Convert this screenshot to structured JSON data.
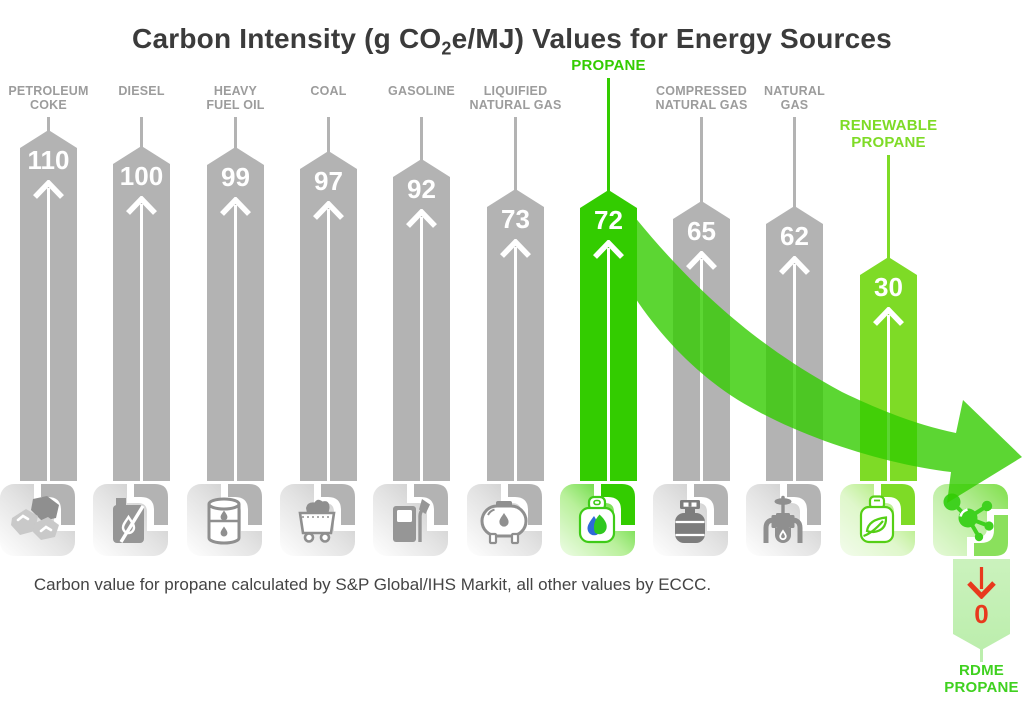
{
  "title": {
    "prefix": "Carbon Intensity (g CO",
    "subscript": "2",
    "suffix": "e/MJ) Values for Energy Sources"
  },
  "note": "Carbon value for propane calculated by S&P Global/IHS Markit, all other values by ECCC.",
  "colors": {
    "bar_gray": "#b3b3b3",
    "label_gray": "#9c9c9c",
    "propane_green": "#33cc00",
    "renewable_green": "#7edb26",
    "rdme_green": "#3fd11f",
    "pale_green_bar": "#bceead",
    "pale_hook": "#8ae05c",
    "alert_red": "#e8391d",
    "title_color": "#3b3b3b",
    "note_color": "#444444"
  },
  "chart_data": {
    "type": "bar",
    "title": "Carbon Intensity (g CO2e/MJ) Values for Energy Sources",
    "unit": "g CO2e/MJ",
    "categories": [
      "Petroleum Coke",
      "Diesel",
      "Heavy Fuel Oil",
      "Coal",
      "Gasoline",
      "Liquified Natural Gas",
      "Propane",
      "Compressed Natural Gas",
      "Natural Gas",
      "Renewable Propane",
      "RDME Propane"
    ],
    "values": [
      110,
      100,
      99,
      97,
      92,
      73,
      72,
      65,
      62,
      30,
      0
    ],
    "highlighted": [
      "Propane",
      "Renewable Propane",
      "RDME Propane"
    ],
    "legend": "none",
    "grid": false,
    "ylim": [
      0,
      110
    ],
    "annotation": "Carbon value for propane calculated by S&P Global/IHS Markit, all other values by ECCC."
  },
  "columns": [
    {
      "label_lines": [
        "PETROLEUM",
        "COKE"
      ],
      "value": "110",
      "theme": "gray",
      "icon": "petroleum-coke-icon"
    },
    {
      "label_lines": [
        "DIESEL"
      ],
      "value": "100",
      "theme": "gray",
      "icon": "diesel-icon"
    },
    {
      "label_lines": [
        "HEAVY",
        "FUEL OIL"
      ],
      "value": "99",
      "theme": "gray",
      "icon": "heavy-fuel-oil-icon"
    },
    {
      "label_lines": [
        "COAL"
      ],
      "value": "97",
      "theme": "gray",
      "icon": "coal-icon"
    },
    {
      "label_lines": [
        "GASOLINE"
      ],
      "value": "92",
      "theme": "gray",
      "icon": "gasoline-icon"
    },
    {
      "label_lines": [
        "LIQUIFIED",
        "NATURAL GAS"
      ],
      "value": "73",
      "theme": "gray",
      "icon": "lng-icon"
    },
    {
      "label_lines": [
        "PROPANE"
      ],
      "value": "72",
      "theme": "green",
      "icon": "propane-icon"
    },
    {
      "label_lines": [
        "COMPRESSED",
        "NATURAL GAS"
      ],
      "value": "65",
      "theme": "gray",
      "icon": "cng-icon"
    },
    {
      "label_lines": [
        "NATURAL",
        "GAS"
      ],
      "value": "62",
      "theme": "gray",
      "icon": "natural-gas-icon"
    },
    {
      "label_lines": [
        "RENEWABLE",
        "PROPANE"
      ],
      "value": "30",
      "theme": "lime",
      "icon": "renewable-propane-icon"
    },
    {
      "label_lines": [
        "RDME",
        "PROPANE"
      ],
      "value": "0",
      "theme": "pale",
      "icon": "rdme-molecule-icon"
    }
  ]
}
